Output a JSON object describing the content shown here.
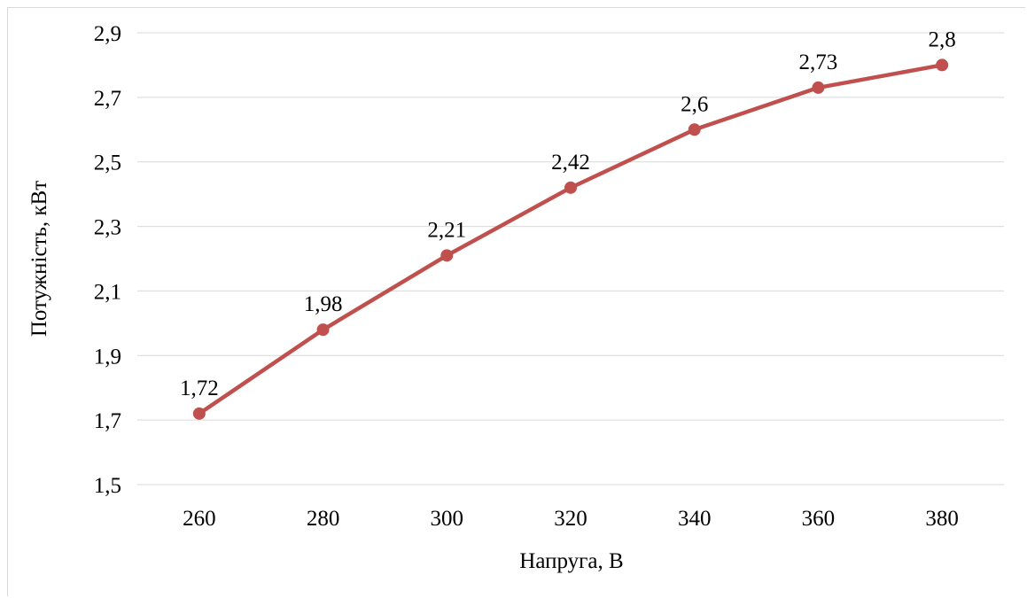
{
  "chart_data": {
    "type": "line",
    "title": "",
    "xlabel": "Напруга, В",
    "ylabel": "Потужність, кВт",
    "categories": [
      "260",
      "280",
      "300",
      "320",
      "340",
      "360",
      "380"
    ],
    "series": [
      {
        "values": [
          1.72,
          1.98,
          2.21,
          2.42,
          2.6,
          2.73,
          2.8
        ],
        "data_labels": [
          "1,72",
          "1,98",
          "2,21",
          "2,42",
          "2,6",
          "2,73",
          "2,8"
        ],
        "color": "#c0504d"
      }
    ],
    "ylim": [
      1.5,
      2.9
    ],
    "y_ticks": [
      1.5,
      1.7,
      1.9,
      2.1,
      2.3,
      2.5,
      2.7,
      2.9
    ],
    "y_tick_labels": [
      "1,5",
      "1,7",
      "1,9",
      "2,1",
      "2,3",
      "2,5",
      "2,7",
      "2,9"
    ],
    "grid": true,
    "legend": "none",
    "colors": {
      "line": "#c0504d",
      "grid": "#d9d9d9",
      "text": "#000000"
    }
  }
}
